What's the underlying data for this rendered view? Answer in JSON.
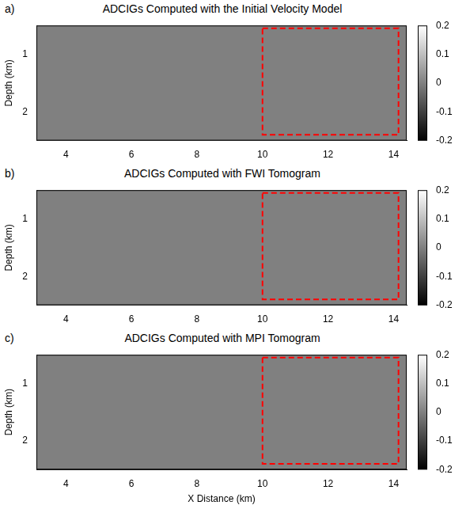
{
  "chart_data": [
    {
      "type": "image",
      "panel_label": "a)",
      "title": "ADCIGs Computed with the Initial Velocity Model",
      "ylabel": "Depth (km)",
      "xlim": [
        3.1,
        14.4
      ],
      "xticks": [
        4,
        6,
        8,
        10,
        12,
        14
      ],
      "ylim": [
        2.5,
        0.5
      ],
      "yticks": [
        1,
        2
      ],
      "series": [
        {
          "x": [
            10,
            14.15,
            14.15,
            10,
            10
          ],
          "values": [
            0.55,
            0.55,
            2.4,
            2.4,
            0.55
          ],
          "color": "#ff0000",
          "line_style": "dashed"
        }
      ],
      "colorbar": {
        "range": [
          -0.2,
          0.2
        ],
        "ticks": [
          -0.2,
          -0.1,
          0,
          0.1,
          0.2
        ]
      }
    },
    {
      "type": "image",
      "panel_label": "b)",
      "title": "ADCIGs Computed with FWI Tomogram",
      "ylabel": "Depth (km)",
      "xlim": [
        3.1,
        14.4
      ],
      "xticks": [
        4,
        6,
        8,
        10,
        12,
        14
      ],
      "ylim": [
        2.5,
        0.5
      ],
      "yticks": [
        1,
        2
      ],
      "series": [
        {
          "x": [
            10,
            14.15,
            14.15,
            10,
            10
          ],
          "values": [
            0.55,
            0.55,
            2.4,
            2.4,
            0.55
          ],
          "color": "#ff0000",
          "line_style": "dashed"
        }
      ],
      "colorbar": {
        "range": [
          -0.2,
          0.2
        ],
        "ticks": [
          -0.2,
          -0.1,
          0,
          0.1,
          0.2
        ]
      }
    },
    {
      "type": "image",
      "panel_label": "c)",
      "title": "ADCIGs Computed with MPI Tomogram",
      "xlabel": "X Distance (km)",
      "ylabel": "Depth (km)",
      "xlim": [
        3.1,
        14.4
      ],
      "xticks": [
        4,
        6,
        8,
        10,
        12,
        14
      ],
      "ylim": [
        2.5,
        0.5
      ],
      "yticks": [
        1,
        2
      ],
      "series": [
        {
          "x": [
            10,
            14.15,
            14.15,
            10,
            10
          ],
          "values": [
            0.55,
            0.55,
            2.4,
            2.4,
            0.55
          ],
          "color": "#ff0000",
          "line_style": "dashed"
        }
      ],
      "colorbar": {
        "range": [
          -0.2,
          0.2
        ],
        "ticks": [
          -0.2,
          -0.1,
          0,
          0.1,
          0.2
        ]
      }
    }
  ]
}
